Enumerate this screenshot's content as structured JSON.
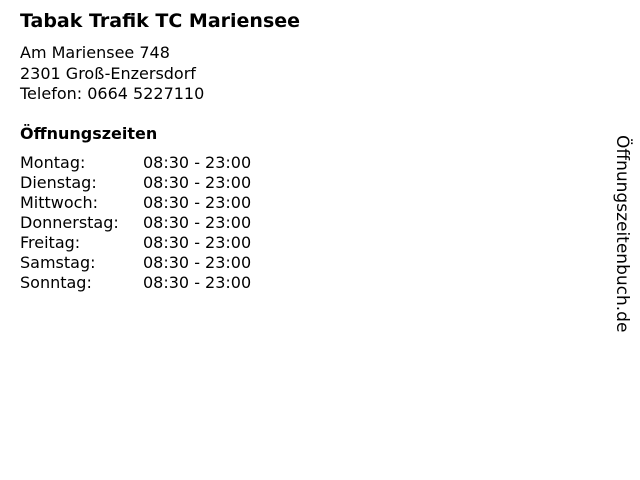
{
  "store": {
    "name": "Tabak Trafik TC Mariensee",
    "street": "Am Mariensee 748",
    "city": "2301 Groß-Enzersdorf",
    "phone": "Telefon: 0664 5227110"
  },
  "hours": {
    "heading": "Öffnungszeiten",
    "rows": [
      {
        "day": "Montag:",
        "time": "08:30 - 23:00"
      },
      {
        "day": "Dienstag:",
        "time": "08:30 - 23:00"
      },
      {
        "day": "Mittwoch:",
        "time": "08:30 - 23:00"
      },
      {
        "day": "Donnerstag:",
        "time": "08:30 - 23:00"
      },
      {
        "day": "Freitag:",
        "time": "08:30 - 23:00"
      },
      {
        "day": "Samstag:",
        "time": "08:30 - 23:00"
      },
      {
        "day": "Sonntag:",
        "time": "08:30 - 23:00"
      }
    ]
  },
  "brand": "Öffnungszeitenbuch.de"
}
